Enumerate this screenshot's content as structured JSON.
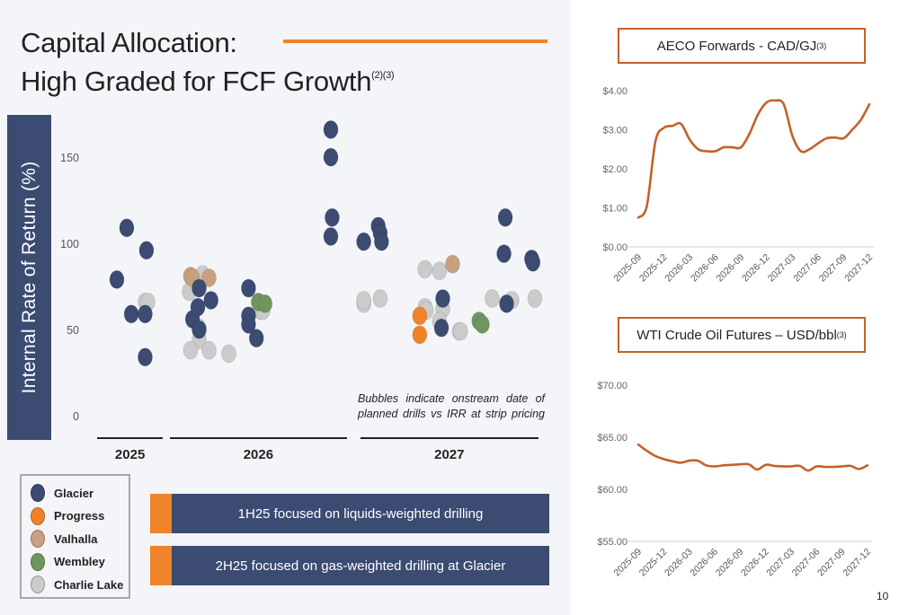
{
  "slide": {
    "title_line1": "Capital Allocation:",
    "title_line2": "High Graded for FCF Growth",
    "title_footnote": "(2)(3)",
    "page_number": "10",
    "accent_color": "#f0822a",
    "navy_color": "#3b4b72"
  },
  "chart_data": [
    {
      "type": "scatter",
      "title": "Capital Allocation: IRR by onstream date",
      "ylabel": "Internal Rate of Return (%)",
      "xlabel": "",
      "ylim": [
        0,
        160
      ],
      "yticks": [
        "0",
        "50",
        "100",
        "150"
      ],
      "ytick_values": [
        0,
        50,
        100,
        150
      ],
      "x_groups": [
        {
          "label": "2025",
          "x_range": [
            0,
            1
          ]
        },
        {
          "label": "2026",
          "x_range": [
            1.1,
            3.8
          ]
        },
        {
          "label": "2027",
          "x_range": [
            4.0,
            6.7
          ]
        }
      ],
      "xlim": [
        0,
        6.8
      ],
      "annotation": "Bubbles indicate onstream date of planned drills vs IRR at strip pricing",
      "legend_position": "bottom-left",
      "series": [
        {
          "name": "Glacier",
          "color": "#3b4b72",
          "points": [
            {
              "x": 0.3,
              "y": 80
            },
            {
              "x": 0.45,
              "y": 110
            },
            {
              "x": 0.52,
              "y": 60
            },
            {
              "x": 0.75,
              "y": 97
            },
            {
              "x": 0.73,
              "y": 60
            },
            {
              "x": 0.73,
              "y": 35
            },
            {
              "x": 1.45,
              "y": 57
            },
            {
              "x": 1.55,
              "y": 75
            },
            {
              "x": 1.53,
              "y": 64
            },
            {
              "x": 1.73,
              "y": 68
            },
            {
              "x": 1.55,
              "y": 51
            },
            {
              "x": 2.3,
              "y": 75
            },
            {
              "x": 2.3,
              "y": 59
            },
            {
              "x": 2.3,
              "y": 54
            },
            {
              "x": 2.42,
              "y": 46
            },
            {
              "x": 3.55,
              "y": 167
            },
            {
              "x": 3.55,
              "y": 151
            },
            {
              "x": 3.57,
              "y": 116
            },
            {
              "x": 3.55,
              "y": 105
            },
            {
              "x": 4.05,
              "y": 102
            },
            {
              "x": 4.27,
              "y": 111
            },
            {
              "x": 4.3,
              "y": 107
            },
            {
              "x": 4.32,
              "y": 102
            },
            {
              "x": 5.25,
              "y": 69
            },
            {
              "x": 5.23,
              "y": 52
            },
            {
              "x": 6.2,
              "y": 116
            },
            {
              "x": 6.18,
              "y": 95
            },
            {
              "x": 6.22,
              "y": 66
            },
            {
              "x": 6.6,
              "y": 92
            },
            {
              "x": 6.62,
              "y": 90
            }
          ]
        },
        {
          "name": "Progress",
          "color": "#f0822a",
          "points": [
            {
              "x": 4.9,
              "y": 59
            },
            {
              "x": 4.9,
              "y": 48
            }
          ]
        },
        {
          "name": "Valhalla",
          "color": "#c9a07f",
          "points": [
            {
              "x": 1.42,
              "y": 82
            },
            {
              "x": 1.45,
              "y": 81
            },
            {
              "x": 1.7,
              "y": 81
            },
            {
              "x": 5.4,
              "y": 89
            }
          ]
        },
        {
          "name": "Wembley",
          "color": "#6f9660",
          "points": [
            {
              "x": 2.45,
              "y": 67
            },
            {
              "x": 2.55,
              "y": 66
            },
            {
              "x": 5.8,
              "y": 56
            },
            {
              "x": 5.85,
              "y": 54
            }
          ]
        },
        {
          "name": "Charlie Lake",
          "color": "#cbcbcb",
          "points": [
            {
              "x": 0.73,
              "y": 67
            },
            {
              "x": 0.77,
              "y": 67
            },
            {
              "x": 1.4,
              "y": 73
            },
            {
              "x": 1.6,
              "y": 83
            },
            {
              "x": 1.55,
              "y": 52
            },
            {
              "x": 1.55,
              "y": 45
            },
            {
              "x": 1.42,
              "y": 39
            },
            {
              "x": 1.7,
              "y": 39
            },
            {
              "x": 2.0,
              "y": 37
            },
            {
              "x": 2.48,
              "y": 62
            },
            {
              "x": 2.52,
              "y": 62
            },
            {
              "x": 4.05,
              "y": 66
            },
            {
              "x": 4.05,
              "y": 68
            },
            {
              "x": 4.3,
              "y": 69
            },
            {
              "x": 4.98,
              "y": 86
            },
            {
              "x": 5.2,
              "y": 85
            },
            {
              "x": 4.98,
              "y": 64
            },
            {
              "x": 5.0,
              "y": 62
            },
            {
              "x": 5.25,
              "y": 63
            },
            {
              "x": 5.2,
              "y": 56
            },
            {
              "x": 5.5,
              "y": 50
            },
            {
              "x": 5.52,
              "y": 50
            },
            {
              "x": 6.0,
              "y": 69
            },
            {
              "x": 6.3,
              "y": 68
            },
            {
              "x": 6.65,
              "y": 69
            }
          ]
        }
      ]
    },
    {
      "type": "line",
      "title": "AECO Forwards - CAD/GJ",
      "title_footnote": "(3)",
      "xlabel": "",
      "ylabel": "",
      "ylim": [
        0,
        4
      ],
      "yticks": [
        "$0.00",
        "$1.00",
        "$2.00",
        "$3.00",
        "$4.00"
      ],
      "ytick_values": [
        0,
        1,
        2,
        3,
        4
      ],
      "categories": [
        "2025-09",
        "2025-12",
        "2026-03",
        "2026-06",
        "2026-09",
        "2026-12",
        "2027-03",
        "2027-06",
        "2027-09",
        "2027-12"
      ],
      "x": [
        "2025-09",
        "2025-10",
        "2025-11",
        "2025-12",
        "2026-01",
        "2026-02",
        "2026-03",
        "2026-04",
        "2026-05",
        "2026-06",
        "2026-07",
        "2026-08",
        "2026-09",
        "2026-10",
        "2026-11",
        "2026-12",
        "2027-01",
        "2027-02",
        "2027-03",
        "2027-04",
        "2027-05",
        "2027-06",
        "2027-07",
        "2027-08",
        "2027-09",
        "2027-10",
        "2027-11",
        "2027-12"
      ],
      "series": [
        {
          "name": "AECO",
          "color": "#c5612a",
          "values": [
            0.75,
            1.05,
            2.7,
            3.05,
            3.1,
            3.15,
            2.75,
            2.5,
            2.45,
            2.45,
            2.55,
            2.55,
            2.55,
            2.9,
            3.4,
            3.7,
            3.75,
            3.65,
            2.85,
            2.45,
            2.5,
            2.65,
            2.78,
            2.8,
            2.78,
            3.0,
            3.25,
            3.65
          ]
        }
      ],
      "grid": false
    },
    {
      "type": "line",
      "title": "WTI Crude Oil Futures – USD/bbl",
      "title_footnote": "(3)",
      "xlabel": "",
      "ylabel": "",
      "ylim": [
        55,
        70
      ],
      "yticks": [
        "$55.00",
        "$60.00",
        "$65.00",
        "$70.00"
      ],
      "ytick_values": [
        55,
        60,
        65,
        70
      ],
      "categories": [
        "2025-09",
        "2025-12",
        "2026-03",
        "2026-06",
        "2026-09",
        "2026-12",
        "2027-03",
        "2027-06",
        "2027-09",
        "2027-12"
      ],
      "x": [
        "2025-09",
        "2025-10",
        "2025-11",
        "2025-12",
        "2026-01",
        "2026-02",
        "2026-03",
        "2026-04",
        "2026-05",
        "2026-06",
        "2026-07",
        "2026-08",
        "2026-09",
        "2026-10",
        "2026-11",
        "2026-12",
        "2027-01",
        "2027-02",
        "2027-03",
        "2027-04",
        "2027-05",
        "2027-06",
        "2027-07",
        "2027-08",
        "2027-09",
        "2027-10",
        "2027-11",
        "2027-12"
      ],
      "series": [
        {
          "name": "WTI",
          "color": "#c5612a",
          "values": [
            64.3,
            63.7,
            63.2,
            62.9,
            62.7,
            62.55,
            62.75,
            62.75,
            62.3,
            62.2,
            62.3,
            62.35,
            62.4,
            62.4,
            61.9,
            62.35,
            62.25,
            62.2,
            62.2,
            62.25,
            61.8,
            62.2,
            62.15,
            62.15,
            62.2,
            62.25,
            61.95,
            62.3
          ]
        }
      ],
      "grid": false
    }
  ],
  "legend": {
    "items": [
      {
        "label": "Glacier",
        "color": "#3b4b72"
      },
      {
        "label": "Progress",
        "color": "#f0822a"
      },
      {
        "label": "Valhalla",
        "color": "#c9a07f"
      },
      {
        "label": "Wembley",
        "color": "#6f9660"
      },
      {
        "label": "Charlie Lake",
        "color": "#cbcbcb"
      }
    ]
  },
  "banners": [
    {
      "text": "1H25 focused on liquids-weighted drilling"
    },
    {
      "text": "2H25 focused on gas-weighted drilling at Glacier"
    }
  ]
}
